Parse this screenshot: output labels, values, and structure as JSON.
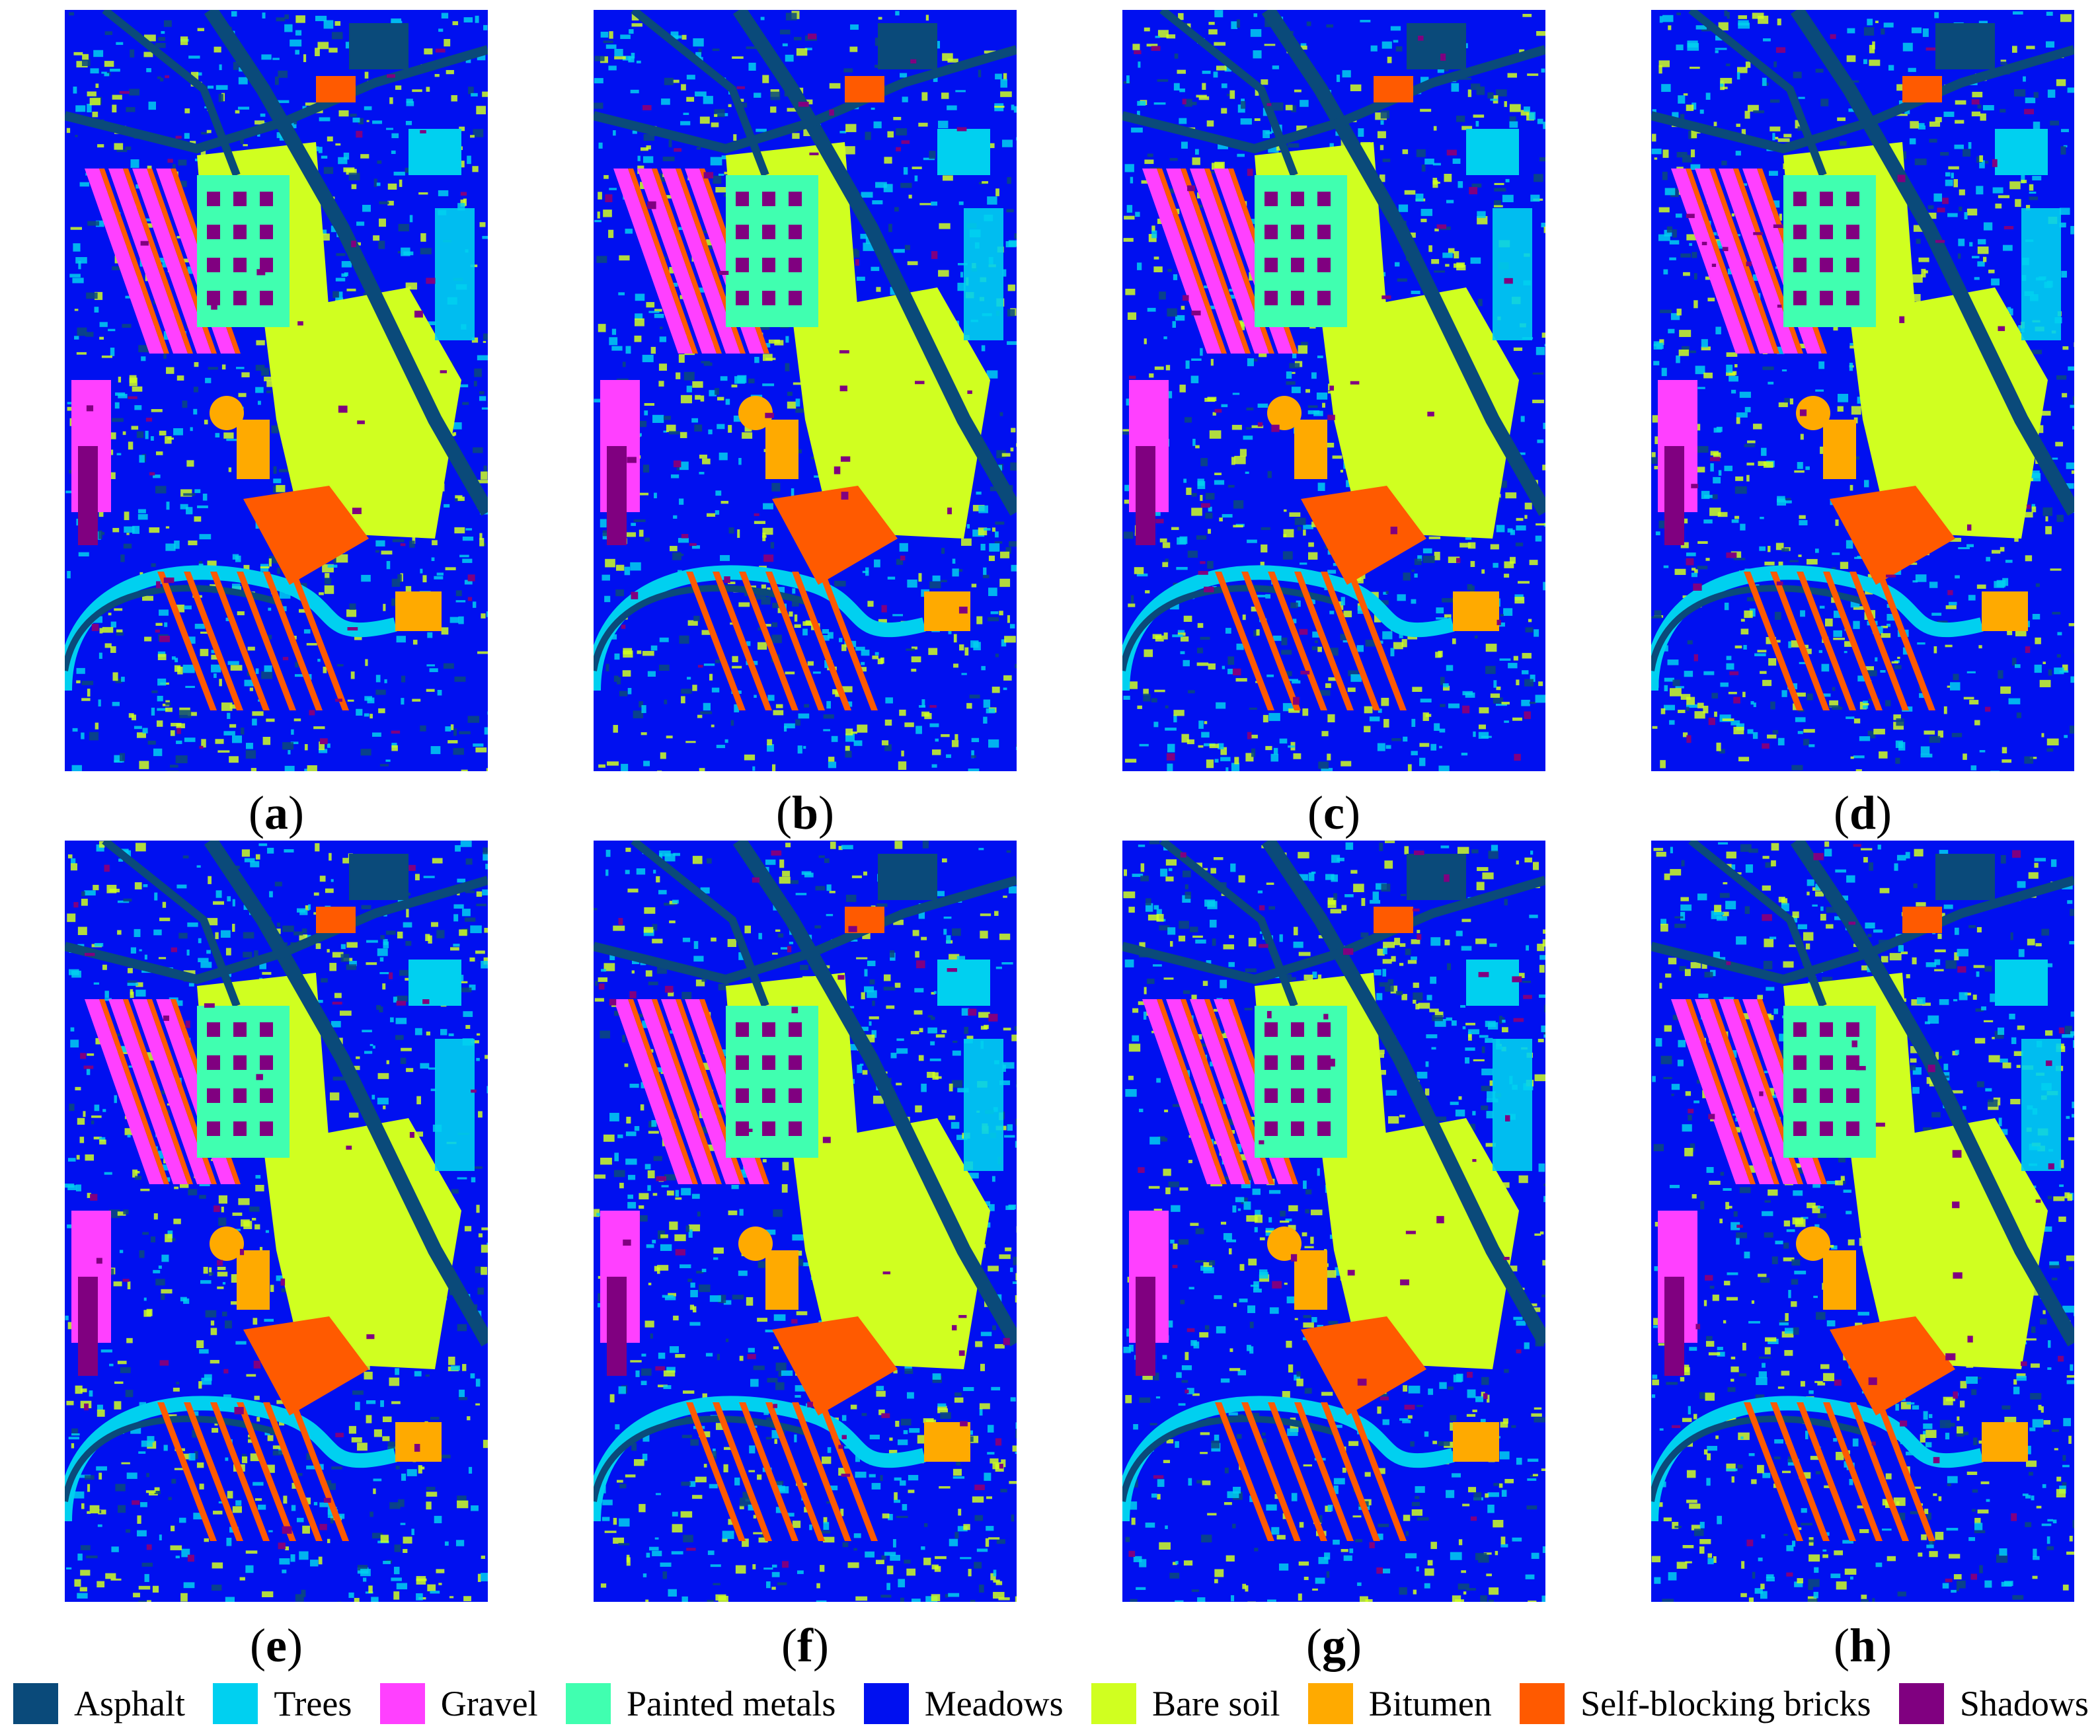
{
  "panels": [
    {
      "id": "a",
      "caption_open": "(",
      "caption_letter": "a",
      "caption_close": ")"
    },
    {
      "id": "b",
      "caption_open": "(",
      "caption_letter": "b",
      "caption_close": ")"
    },
    {
      "id": "c",
      "caption_open": "(",
      "caption_letter": "c",
      "caption_close": ")"
    },
    {
      "id": "d",
      "caption_open": "(",
      "caption_letter": "d",
      "caption_close": ")"
    },
    {
      "id": "e",
      "caption_open": "(",
      "caption_letter": "e",
      "caption_close": ")"
    },
    {
      "id": "f",
      "caption_open": "(",
      "caption_letter": "f",
      "caption_close": ")"
    },
    {
      "id": "g",
      "caption_open": "(",
      "caption_letter": "g",
      "caption_close": ")"
    },
    {
      "id": "h",
      "caption_open": "(",
      "caption_letter": "h",
      "caption_close": ")"
    }
  ],
  "legend": [
    {
      "label": "Asphalt",
      "color": "#0a4a7a"
    },
    {
      "label": "Trees",
      "color": "#00d0f0"
    },
    {
      "label": "Gravel",
      "color": "#ff40ff"
    },
    {
      "label": "Painted metals",
      "color": "#40ffb0"
    },
    {
      "label": "Meadows",
      "color": "#0010f0"
    },
    {
      "label": "Bare soil",
      "color": "#d0ff20"
    },
    {
      "label": "Bitumen",
      "color": "#ffaa00"
    },
    {
      "label": "Self-blocking bricks",
      "color": "#ff5a00"
    },
    {
      "label": "Shadows",
      "color": "#800080"
    }
  ]
}
